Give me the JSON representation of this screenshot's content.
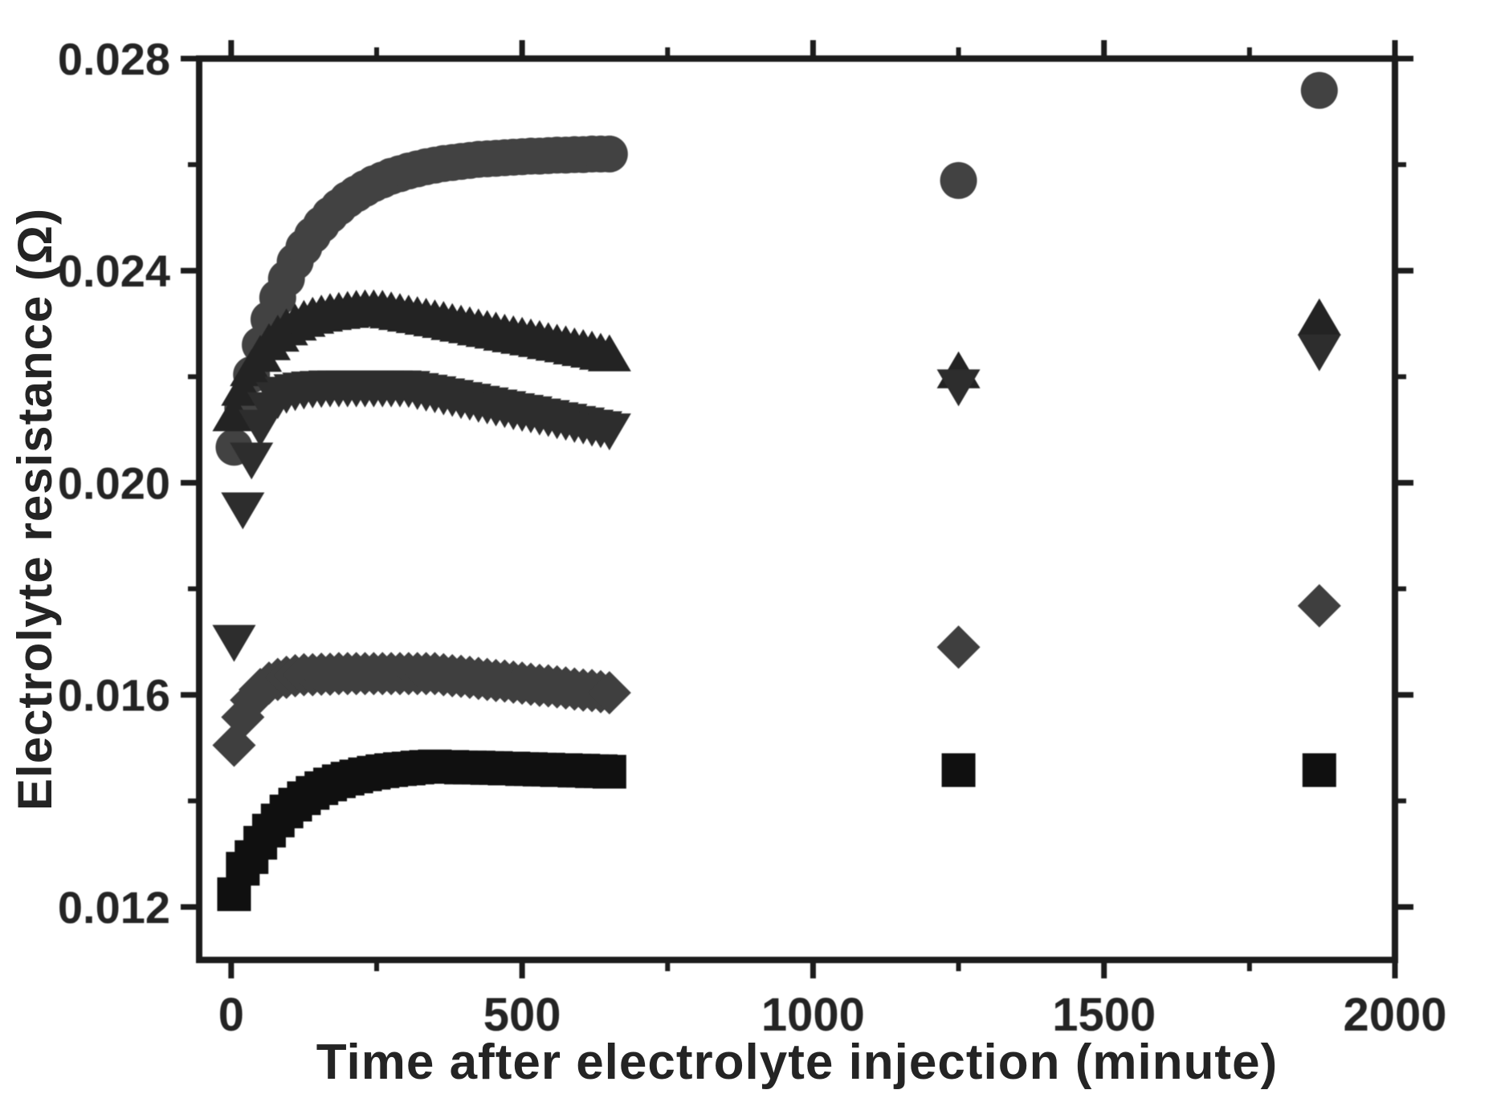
{
  "figure": {
    "background": "#ffffff",
    "ink": "#1c1c1c",
    "text_color": "#242424"
  },
  "chart_data": {
    "type": "scatter",
    "title": "",
    "xlabel": "Time after electrolyte injection (minute)",
    "ylabel": "Electrolyte resistance (Ω)",
    "xlim": [
      -55,
      2000
    ],
    "ylim": [
      0.011,
      0.028
    ],
    "grid": false,
    "legend": "none",
    "x_major_ticks": [
      0,
      500,
      1000,
      1500,
      2000
    ],
    "x_tick_labels": [
      "0",
      "500",
      "1000",
      "1500",
      "2000"
    ],
    "x_minor_ticks": [
      250,
      750,
      1250,
      1750
    ],
    "y_major_ticks": [
      0.012,
      0.016,
      0.02,
      0.024,
      0.028
    ],
    "y_tick_labels": [
      "0.012",
      "0.016",
      "0.020",
      "0.024",
      "0.028"
    ],
    "y_minor_ticks": [
      0.014,
      0.018,
      0.022,
      0.026
    ],
    "series": [
      {
        "name": "circles",
        "marker": "circle",
        "color": "#424242",
        "points": [
          [
            5,
            0.02067
          ],
          [
            20,
            0.02141
          ],
          [
            35,
            0.02204
          ],
          [
            50,
            0.0226
          ],
          [
            65,
            0.02308
          ],
          [
            80,
            0.02349
          ],
          [
            95,
            0.02385
          ],
          [
            110,
            0.02417
          ],
          [
            125,
            0.02444
          ],
          [
            140,
            0.02467
          ],
          [
            155,
            0.02487
          ],
          [
            170,
            0.02505
          ],
          [
            185,
            0.0252
          ],
          [
            200,
            0.02534
          ],
          [
            215,
            0.02545
          ],
          [
            230,
            0.02555
          ],
          [
            245,
            0.02564
          ],
          [
            260,
            0.02571
          ],
          [
            275,
            0.02578
          ],
          [
            290,
            0.02583
          ],
          [
            305,
            0.02588
          ],
          [
            320,
            0.02592
          ],
          [
            335,
            0.02596
          ],
          [
            350,
            0.02599
          ],
          [
            365,
            0.02602
          ],
          [
            380,
            0.02604
          ],
          [
            395,
            0.02606
          ],
          [
            410,
            0.02608
          ],
          [
            425,
            0.0261
          ],
          [
            440,
            0.02611
          ],
          [
            455,
            0.02612
          ],
          [
            470,
            0.02613
          ],
          [
            485,
            0.02614
          ],
          [
            500,
            0.02615
          ],
          [
            515,
            0.02616
          ],
          [
            530,
            0.02616
          ],
          [
            545,
            0.02617
          ],
          [
            560,
            0.02618
          ],
          [
            575,
            0.02618
          ],
          [
            590,
            0.02619
          ],
          [
            605,
            0.02619
          ],
          [
            620,
            0.0262
          ],
          [
            635,
            0.0262
          ],
          [
            650,
            0.0262
          ],
          [
            1250,
            0.0257
          ],
          [
            1870,
            0.0274
          ]
        ]
      },
      {
        "name": "up-triangles",
        "marker": "triangle-up",
        "color": "#232323",
        "points": [
          [
            5,
            0.02129
          ],
          [
            20,
            0.02177
          ],
          [
            35,
            0.02214
          ],
          [
            50,
            0.02241
          ],
          [
            65,
            0.02263
          ],
          [
            80,
            0.02279
          ],
          [
            95,
            0.02291
          ],
          [
            110,
            0.023
          ],
          [
            125,
            0.02307
          ],
          [
            140,
            0.02313
          ],
          [
            155,
            0.02317
          ],
          [
            170,
            0.0232
          ],
          [
            185,
            0.02322
          ],
          [
            200,
            0.02324
          ],
          [
            215,
            0.02326
          ],
          [
            230,
            0.02327
          ],
          [
            245,
            0.02327
          ],
          [
            260,
            0.02326
          ],
          [
            275,
            0.02323
          ],
          [
            290,
            0.0232
          ],
          [
            305,
            0.02317
          ],
          [
            320,
            0.02314
          ],
          [
            335,
            0.02311
          ],
          [
            350,
            0.02308
          ],
          [
            365,
            0.02305
          ],
          [
            380,
            0.02301
          ],
          [
            395,
            0.02298
          ],
          [
            410,
            0.02295
          ],
          [
            425,
            0.02291
          ],
          [
            440,
            0.02288
          ],
          [
            455,
            0.02285
          ],
          [
            470,
            0.02281
          ],
          [
            485,
            0.02278
          ],
          [
            500,
            0.02275
          ],
          [
            515,
            0.02272
          ],
          [
            530,
            0.02269
          ],
          [
            545,
            0.02265
          ],
          [
            560,
            0.02262
          ],
          [
            575,
            0.02259
          ],
          [
            590,
            0.02255
          ],
          [
            605,
            0.02252
          ],
          [
            620,
            0.02249
          ],
          [
            635,
            0.02245
          ],
          [
            650,
            0.02242
          ],
          [
            1250,
            0.0221
          ],
          [
            1870,
            0.0231
          ]
        ]
      },
      {
        "name": "down-triangles",
        "marker": "triangle-down",
        "color": "#2d2d2d",
        "points": [
          [
            5,
            0.017
          ],
          [
            20,
            0.0195
          ],
          [
            35,
            0.02044
          ],
          [
            50,
            0.02106
          ],
          [
            65,
            0.02139
          ],
          [
            80,
            0.02158
          ],
          [
            95,
            0.02168
          ],
          [
            110,
            0.02173
          ],
          [
            125,
            0.02176
          ],
          [
            140,
            0.02178
          ],
          [
            155,
            0.02179
          ],
          [
            170,
            0.0218
          ],
          [
            185,
            0.0218
          ],
          [
            200,
            0.0218
          ],
          [
            215,
            0.0218
          ],
          [
            230,
            0.0218
          ],
          [
            245,
            0.0218
          ],
          [
            260,
            0.0218
          ],
          [
            275,
            0.0218
          ],
          [
            290,
            0.0218
          ],
          [
            305,
            0.02179
          ],
          [
            320,
            0.02175
          ],
          [
            335,
            0.02172
          ],
          [
            350,
            0.02169
          ],
          [
            365,
            0.02165
          ],
          [
            380,
            0.02162
          ],
          [
            395,
            0.02158
          ],
          [
            410,
            0.02155
          ],
          [
            425,
            0.02151
          ],
          [
            440,
            0.02148
          ],
          [
            455,
            0.02144
          ],
          [
            470,
            0.02141
          ],
          [
            485,
            0.02137
          ],
          [
            500,
            0.02134
          ],
          [
            515,
            0.02131
          ],
          [
            530,
            0.02127
          ],
          [
            545,
            0.02124
          ],
          [
            560,
            0.0212
          ],
          [
            575,
            0.02117
          ],
          [
            590,
            0.02113
          ],
          [
            605,
            0.0211
          ],
          [
            620,
            0.02106
          ],
          [
            635,
            0.02103
          ],
          [
            650,
            0.02099
          ],
          [
            1250,
            0.02182
          ],
          [
            1870,
            0.02248
          ]
        ]
      },
      {
        "name": "diamonds",
        "marker": "diamond",
        "color": "#3f3f3f",
        "points": [
          [
            5,
            0.01505
          ],
          [
            20,
            0.01558
          ],
          [
            35,
            0.0159
          ],
          [
            50,
            0.0161
          ],
          [
            65,
            0.01622
          ],
          [
            80,
            0.01629
          ],
          [
            95,
            0.01633
          ],
          [
            110,
            0.01636
          ],
          [
            125,
            0.01638
          ],
          [
            140,
            0.01638
          ],
          [
            155,
            0.01639
          ],
          [
            170,
            0.01639
          ],
          [
            185,
            0.0164
          ],
          [
            200,
            0.0164
          ],
          [
            215,
            0.0164
          ],
          [
            230,
            0.0164
          ],
          [
            245,
            0.0164
          ],
          [
            260,
            0.0164
          ],
          [
            275,
            0.0164
          ],
          [
            290,
            0.0164
          ],
          [
            305,
            0.0164
          ],
          [
            320,
            0.0164
          ],
          [
            335,
            0.0164
          ],
          [
            350,
            0.0164
          ],
          [
            365,
            0.01638
          ],
          [
            380,
            0.01636
          ],
          [
            395,
            0.01635
          ],
          [
            410,
            0.01633
          ],
          [
            425,
            0.01631
          ],
          [
            440,
            0.01629
          ],
          [
            455,
            0.01627
          ],
          [
            470,
            0.01626
          ],
          [
            485,
            0.01624
          ],
          [
            500,
            0.01622
          ],
          [
            515,
            0.0162
          ],
          [
            530,
            0.01618
          ],
          [
            545,
            0.01617
          ],
          [
            560,
            0.01615
          ],
          [
            575,
            0.01613
          ],
          [
            590,
            0.01611
          ],
          [
            605,
            0.01609
          ],
          [
            620,
            0.01608
          ],
          [
            635,
            0.01606
          ],
          [
            650,
            0.01604
          ],
          [
            1250,
            0.0169
          ],
          [
            1870,
            0.01768
          ]
        ]
      },
      {
        "name": "squares",
        "marker": "square",
        "color": "#101010",
        "points": [
          [
            5,
            0.01224
          ],
          [
            20,
            0.01272
          ],
          [
            35,
            0.01294
          ],
          [
            50,
            0.01321
          ],
          [
            65,
            0.01344
          ],
          [
            80,
            0.01363
          ],
          [
            95,
            0.0138
          ],
          [
            110,
            0.01393
          ],
          [
            125,
            0.01405
          ],
          [
            140,
            0.01415
          ],
          [
            155,
            0.01424
          ],
          [
            170,
            0.01431
          ],
          [
            185,
            0.01437
          ],
          [
            200,
            0.01442
          ],
          [
            215,
            0.01446
          ],
          [
            230,
            0.0145
          ],
          [
            245,
            0.01453
          ],
          [
            260,
            0.01456
          ],
          [
            275,
            0.01458
          ],
          [
            290,
            0.0146
          ],
          [
            305,
            0.01461
          ],
          [
            320,
            0.01463
          ],
          [
            335,
            0.01464
          ],
          [
            350,
            0.01465
          ],
          [
            365,
            0.01464
          ],
          [
            380,
            0.01464
          ],
          [
            395,
            0.01463
          ],
          [
            410,
            0.01463
          ],
          [
            425,
            0.01463
          ],
          [
            440,
            0.01462
          ],
          [
            455,
            0.01462
          ],
          [
            470,
            0.01461
          ],
          [
            485,
            0.01461
          ],
          [
            500,
            0.0146
          ],
          [
            515,
            0.0146
          ],
          [
            530,
            0.01459
          ],
          [
            545,
            0.01459
          ],
          [
            560,
            0.01458
          ],
          [
            575,
            0.01458
          ],
          [
            590,
            0.01457
          ],
          [
            605,
            0.01457
          ],
          [
            620,
            0.01456
          ],
          [
            635,
            0.01456
          ],
          [
            650,
            0.01455
          ],
          [
            1250,
            0.01458
          ],
          [
            1870,
            0.01458
          ]
        ]
      }
    ]
  }
}
